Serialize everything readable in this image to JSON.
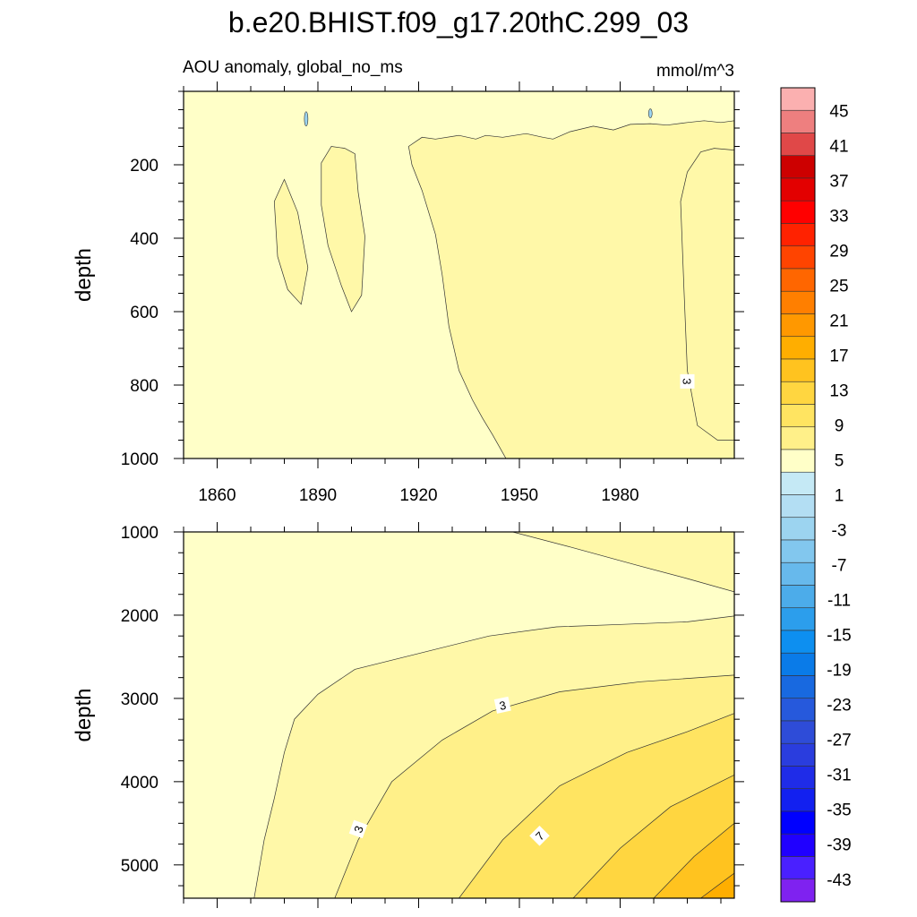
{
  "chart_data": {
    "type": "contour",
    "title": "b.e20.BHIST.f09_g17.20thC.299_03",
    "subtitle_left": "AOU anomaly, global_no_ms",
    "subtitle_right": "mmol/m^3",
    "x_range": [
      1850,
      2014
    ],
    "x_ticks": [
      1860,
      1890,
      1920,
      1950,
      1980
    ],
    "x_tick_labels": [
      "1860",
      "1890",
      "1920",
      "1950",
      "1980"
    ],
    "panels": [
      {
        "name": "upper",
        "ylabel": "depth",
        "ylim": [
          0,
          1000
        ],
        "y_reversed": true,
        "y_ticks": [
          200,
          400,
          600,
          800,
          1000
        ],
        "y_tick_labels": [
          "200",
          "400",
          "600",
          "800",
          "1000"
        ],
        "contour_labels": [
          {
            "text": "3",
            "year": 2000,
            "depth": 790,
            "angle": 90
          }
        ],
        "regions": [
          {
            "level": 1,
            "points": [
              [
                1850,
                0
              ],
              [
                2014,
                0
              ],
              [
                2014,
                1000
              ],
              [
                1850,
                1000
              ]
            ]
          },
          {
            "level": 3,
            "points": [
              [
                1917,
                150
              ],
              [
                1921,
                125
              ],
              [
                1925,
                130
              ],
              [
                1932,
                120
              ],
              [
                1937,
                130
              ],
              [
                1940,
                120
              ],
              [
                1945,
                125
              ],
              [
                1952,
                115
              ],
              [
                1957,
                125
              ],
              [
                1960,
                130
              ],
              [
                1965,
                110
              ],
              [
                1972,
                95
              ],
              [
                1978,
                105
              ],
              [
                1983,
                90
              ],
              [
                1989,
                88
              ],
              [
                1994,
                92
              ],
              [
                2000,
                85
              ],
              [
                2005,
                80
              ],
              [
                2010,
                85
              ],
              [
                2014,
                80
              ],
              [
                2014,
                1000
              ],
              [
                1946,
                1000
              ],
              [
                1942,
                935
              ],
              [
                1939,
                890
              ],
              [
                1936,
                840
              ],
              [
                1932,
                760
              ],
              [
                1929,
                640
              ],
              [
                1927,
                500
              ],
              [
                1925,
                390
              ],
              [
                1921,
                270
              ],
              [
                1918,
                200
              ]
            ]
          },
          {
            "level": 3,
            "points": [
              [
                1877,
                300
              ],
              [
                1880,
                240
              ],
              [
                1884,
                330
              ],
              [
                1887,
                480
              ],
              [
                1885,
                580
              ],
              [
                1881,
                540
              ],
              [
                1878,
                450
              ]
            ]
          },
          {
            "level": 3,
            "points": [
              [
                1891,
                195
              ],
              [
                1894,
                150
              ],
              [
                1898,
                155
              ],
              [
                1901,
                170
              ],
              [
                1902,
                275
              ],
              [
                1904,
                395
              ],
              [
                1903,
                555
              ],
              [
                1900,
                600
              ],
              [
                1897,
                530
              ],
              [
                1893,
                420
              ],
              [
                1891,
                310
              ]
            ]
          },
          {
            "level": 3,
            "points": [
              [
                1998,
                300
              ],
              [
                2000,
                220
              ],
              [
                2004,
                165
              ],
              [
                2008,
                155
              ],
              [
                2014,
                160
              ],
              [
                2014,
                950
              ],
              [
                2009,
                950
              ],
              [
                2003,
                910
              ],
              [
                2000,
                760
              ],
              [
                1999,
                540
              ]
            ]
          }
        ]
      },
      {
        "name": "lower",
        "ylabel": "depth",
        "ylim": [
          1000,
          5400
        ],
        "y_reversed": true,
        "y_ticks": [
          1000,
          2000,
          3000,
          4000,
          5000
        ],
        "y_tick_labels": [
          "1000",
          "2000",
          "3000",
          "4000",
          "5000"
        ],
        "contour_labels": [
          {
            "text": "3",
            "year": 1945,
            "depth": 3080,
            "angle": -12
          },
          {
            "text": "3",
            "year": 1902,
            "depth": 4570,
            "angle": -70
          },
          {
            "text": "7",
            "year": 1956,
            "depth": 4650,
            "angle": -45
          }
        ],
        "regions": [
          {
            "level": 1,
            "points": [
              [
                1850,
                1000
              ],
              [
                2014,
                1000
              ],
              [
                2014,
                5400
              ],
              [
                1850,
                5400
              ]
            ]
          },
          {
            "level": 3,
            "points": [
              [
                1948,
                1000
              ],
              [
                1965,
                1180
              ],
              [
                1985,
                1400
              ],
              [
                2000,
                1560
              ],
              [
                2014,
                1720
              ],
              [
                2014,
                1000
              ]
            ]
          },
          {
            "level": 3,
            "points": [
              [
                1871,
                5400
              ],
              [
                1874,
                4700
              ],
              [
                1877,
                4200
              ],
              [
                1880,
                3650
              ],
              [
                1883,
                3250
              ],
              [
                1890,
                2950
              ],
              [
                1901,
                2650
              ],
              [
                1921,
                2450
              ],
              [
                1941,
                2250
              ],
              [
                1961,
                2140
              ],
              [
                1981,
                2110
              ],
              [
                2000,
                2080
              ],
              [
                2014,
                2010
              ],
              [
                2014,
                5400
              ]
            ]
          },
          {
            "level": 5,
            "points": [
              [
                1895,
                5400
              ],
              [
                1902,
                4700
              ],
              [
                1912,
                4000
              ],
              [
                1927,
                3500
              ],
              [
                1942,
                3150
              ],
              [
                1962,
                2920
              ],
              [
                1986,
                2800
              ],
              [
                2014,
                2720
              ],
              [
                2014,
                5400
              ]
            ]
          },
          {
            "level": 7,
            "points": [
              [
                1932,
                5400
              ],
              [
                1945,
                4700
              ],
              [
                1962,
                4050
              ],
              [
                1982,
                3650
              ],
              [
                2000,
                3400
              ],
              [
                2014,
                3180
              ],
              [
                2014,
                5400
              ]
            ]
          },
          {
            "level": 9,
            "points": [
              [
                1966,
                5400
              ],
              [
                1980,
                4800
              ],
              [
                1995,
                4300
              ],
              [
                2014,
                3920
              ],
              [
                2014,
                5400
              ]
            ]
          },
          {
            "level": 11,
            "points": [
              [
                1990,
                5400
              ],
              [
                2002,
                4900
              ],
              [
                2014,
                4500
              ],
              [
                2014,
                5400
              ]
            ]
          },
          {
            "level": 13,
            "points": [
              [
                2004,
                5400
              ],
              [
                2014,
                5100
              ],
              [
                2014,
                5400
              ]
            ]
          }
        ]
      }
    ],
    "colorbar": {
      "labels": [
        "45",
        "41",
        "37",
        "33",
        "29",
        "25",
        "21",
        "17",
        "13",
        "9",
        "5",
        "1",
        "-3",
        "-7",
        "-11",
        "-15",
        "-19",
        "-23",
        "-27",
        "-31",
        "-35",
        "-39",
        "-43"
      ],
      "colors": [
        "#fbb0b0",
        "#ee7f7f",
        "#e04848",
        "#cd0000",
        "#e30000",
        "#ff0000",
        "#ff2200",
        "#ff4400",
        "#ff6600",
        "#ff7f00",
        "#ff9800",
        "#ffae00",
        "#ffc31f",
        "#ffd640",
        "#ffe461",
        "#fff089",
        "#ffffc8",
        "#c5e9f5",
        "#b3def3",
        "#9cd4f0",
        "#82c7ee",
        "#67b9ec",
        "#4cacea",
        "#2c9eec",
        "#0d8ff0",
        "#0a7be8",
        "#1869e0",
        "#2659dc",
        "#2e4cd8",
        "#2a3dde",
        "#1f2ce8",
        "#1220f0",
        "#0000ff",
        "#2000ff",
        "#4a20ff",
        "#7f22f0"
      ]
    },
    "level_colors": {
      "1": "#ffffc8",
      "3": "#fff8a8",
      "5": "#fff089",
      "7": "#ffe461",
      "9": "#ffd640",
      "11": "#ffc31f",
      "13": "#ffae00"
    }
  }
}
